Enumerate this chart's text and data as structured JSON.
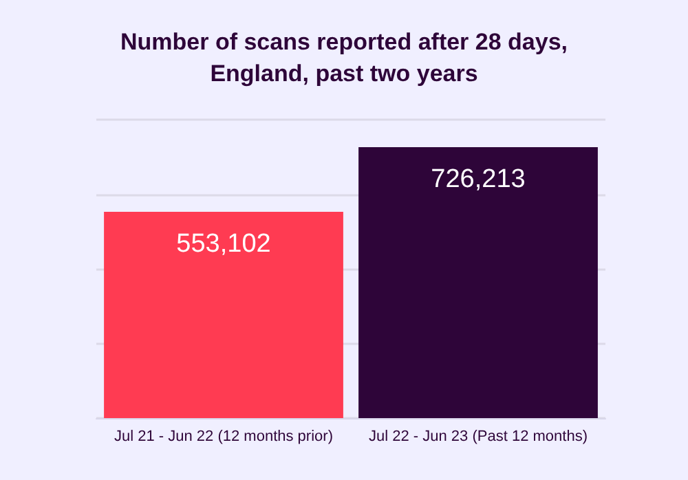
{
  "chart_data": {
    "type": "bar",
    "title": "Number of scans reported after 28 days,\nEngland, past two years",
    "categories": [
      "Jul 21 - Jun 22 (12 months prior)",
      "Jul 22 - Jun 23 (Past 12 months)"
    ],
    "values": [
      553102,
      726213
    ],
    "colors": [
      "#ff3b52",
      "#2e0539"
    ],
    "value_labels": [
      "553,102",
      "726,213"
    ],
    "ylim": [
      0,
      800000
    ],
    "yticks": [
      {
        "value": 0,
        "label": null
      },
      {
        "value": 200000,
        "label": null
      },
      {
        "value": 400000,
        "label": null
      },
      {
        "value": 600000,
        "label": null
      },
      {
        "value": 800000,
        "label": null
      }
    ],
    "grid": "y",
    "tick_labels": "x"
  }
}
